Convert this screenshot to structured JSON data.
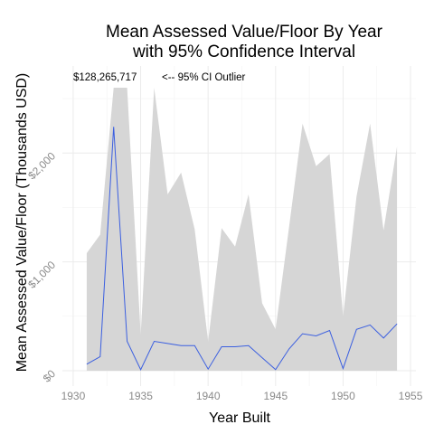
{
  "chart_data": {
    "type": "line",
    "title_line1": "Mean Assessed Value/Floor By Year",
    "title_line2": "with 95% Confidence Interval",
    "xlabel": "Year Built",
    "ylabel": "Mean Assessed Value/Floor (Thousands USD)",
    "xlim": [
      1929.2,
      1955.4
    ],
    "ylim": [
      0,
      2600
    ],
    "x_ticks": [
      1930,
      1935,
      1940,
      1945,
      1950,
      1955
    ],
    "x_tick_labels": [
      "1930",
      "1935",
      "1940",
      "1945",
      "1950",
      "1955"
    ],
    "y_ticks": [
      0,
      1000,
      2000
    ],
    "y_tick_labels": [
      "$0",
      "$1,000",
      "$2,000"
    ],
    "grid": true,
    "colors": {
      "line": "#3b5fe0",
      "ribbon": "#d6d6d6",
      "panel": "#ffffff",
      "grid": "#ebebeb"
    },
    "annotation_value": "$128,265,717",
    "annotation_note": "<-- 95% CI Outlier",
    "x": [
      1931,
      1932,
      1933,
      1934,
      1935,
      1936,
      1937,
      1938,
      1939,
      1940,
      1941,
      1942,
      1943,
      1944,
      1945,
      1946,
      1947,
      1948,
      1949,
      1950,
      1951,
      1952,
      1953,
      1954
    ],
    "series": [
      {
        "values": [
          60,
          130,
          2240,
          270,
          10,
          270,
          250,
          230,
          230,
          15,
          220,
          220,
          230,
          120,
          10,
          200,
          340,
          320,
          370,
          20,
          380,
          420,
          300,
          430
        ]
      }
    ],
    "ci_upper": [
      1080,
      1250,
      2600,
      2600,
      330,
      2600,
      1620,
      1820,
      1300,
      270,
      1310,
      1140,
      1620,
      620,
      380,
      1320,
      2270,
      1880,
      1990,
      500,
      1600,
      2270,
      1290,
      2060
    ],
    "ci_lower": [
      0,
      0,
      0,
      0,
      0,
      0,
      0,
      0,
      0,
      0,
      0,
      0,
      0,
      0,
      0,
      0,
      0,
      0,
      0,
      0,
      0,
      0,
      0,
      0
    ]
  }
}
